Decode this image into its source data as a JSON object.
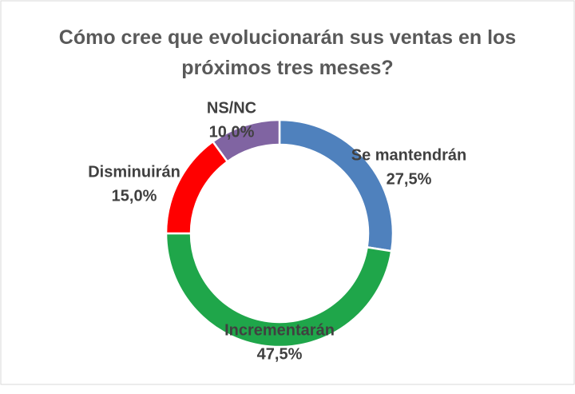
{
  "chart_data": {
    "type": "donut",
    "title": "Cómo cree que evolucionarán sus ventas en los próximos tres meses?",
    "categories": [
      "Se mantendrán",
      "Incrementarán",
      "Disminuirán",
      "NS/NC"
    ],
    "values": [
      27.5,
      47.5,
      15.0,
      10.0
    ],
    "value_labels": [
      "27,5%",
      "47,5%",
      "15,0%",
      "10,0%"
    ],
    "colors": [
      "#4f81bd",
      "#1fa64a",
      "#ff0000",
      "#8064a2"
    ]
  }
}
